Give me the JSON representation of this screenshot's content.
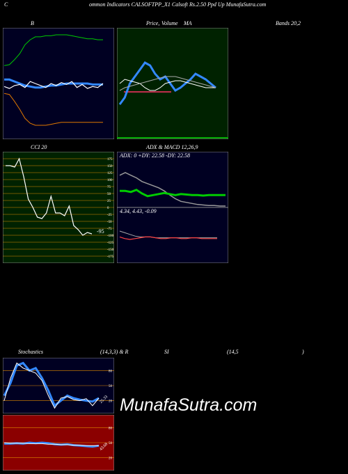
{
  "header": {
    "c": "C",
    "title": "ommon  Indicators CALSOFTPP_X1 Calsoft Rs.2.50  Ppd Up MunafaSutra.com"
  },
  "bollinger": {
    "label": "B",
    "label_right": "Bands 20,2"
  },
  "price": {
    "label": "Price,",
    "label2": "Volume",
    "label3": "MA"
  },
  "cci": {
    "label": "CCI 20",
    "last_value": "-95"
  },
  "adx": {
    "label": "ADX  & MACD 12,26,9",
    "readout": "ADX: 0  +DY: 22.58  -DY: 22.58"
  },
  "macd": {
    "readout": "4.34,  4.43,  -0.09"
  },
  "stoch": {
    "label": "Stochastics",
    "params": "(14,3,3) & R",
    "si": "SI",
    "rsi_params": "(14,5",
    "close_paren": ")",
    "last_value": "25.33"
  },
  "rsi": {
    "last_value": "43.68"
  },
  "watermark": "MunafaSutra.com",
  "colors": {
    "panel_bg": "#000022",
    "price_bg": "#002200",
    "cci_bg": "#002200",
    "rsi_bg": "#8b0000",
    "grid_orange": "#e08a00",
    "blue": "#3388ff",
    "green": "#00cc00",
    "orange": "#e07800"
  },
  "chart_data": [
    {
      "type": "line",
      "panel": "bollinger",
      "series": [
        {
          "values": [
            66,
            67,
            72,
            78,
            87,
            92,
            95,
            95,
            96,
            96,
            97,
            97,
            97,
            96,
            95,
            94,
            93,
            93,
            92,
            92
          ]
        },
        {
          "values": [
            52,
            52,
            50,
            48,
            46,
            45,
            44,
            44,
            45,
            46,
            46,
            47,
            48,
            48,
            48,
            48,
            48,
            47,
            47,
            47
          ]
        },
        {
          "values": [
            38,
            37,
            30,
            22,
            13,
            8,
            6,
            6,
            6,
            7,
            8,
            9,
            9,
            9,
            9,
            9,
            9,
            9,
            9,
            9
          ]
        },
        {
          "values": [
            45,
            43,
            46,
            47,
            44,
            50,
            48,
            46,
            44,
            48,
            46,
            49,
            47,
            50,
            44,
            47,
            43,
            45,
            44,
            48
          ]
        }
      ]
    },
    {
      "type": "line",
      "panel": "price",
      "series": [
        {
          "values": [
            40,
            45,
            55,
            60,
            65,
            70,
            68,
            62,
            58,
            60,
            55,
            50,
            52,
            55,
            58,
            62,
            60,
            58,
            55,
            52
          ]
        },
        {
          "values": [
            55,
            58,
            57,
            56,
            55,
            52,
            50,
            50,
            52,
            55,
            56,
            57,
            57,
            56,
            55,
            54,
            53,
            52,
            52,
            52
          ]
        },
        {
          "values": [
            50,
            52,
            53,
            54,
            55,
            56,
            57,
            58,
            59,
            60,
            60,
            60,
            59,
            58,
            57,
            56,
            55,
            54,
            53,
            52
          ]
        }
      ]
    },
    {
      "type": "line",
      "panel": "cci",
      "ylim": [
        -175,
        175
      ],
      "ticks": [
        175,
        150,
        125,
        100,
        75,
        50,
        25,
        0,
        -25,
        -50,
        -75,
        -100,
        -125,
        -150,
        -175
      ],
      "values": [
        150,
        150,
        145,
        175,
        110,
        30,
        0,
        -35,
        -40,
        -20,
        40,
        -20,
        -20,
        -30,
        5,
        -65,
        -80,
        -100,
        -90,
        -95
      ]
    },
    {
      "type": "line",
      "panel": "adx",
      "series": [
        {
          "values": [
            30,
            30,
            28,
            32,
            25,
            20,
            22,
            24,
            26,
            24,
            22,
            24,
            23,
            22,
            22,
            21,
            22,
            22,
            22,
            22
          ]
        },
        {
          "values": [
            60,
            65,
            60,
            55,
            48,
            44,
            40,
            36,
            30,
            22,
            15,
            10,
            8,
            6,
            4,
            3,
            2,
            2,
            1,
            1
          ]
        }
      ]
    },
    {
      "type": "line",
      "panel": "macd",
      "series": [
        {
          "values": [
            5.2,
            5.0,
            4.8,
            4.6,
            4.5,
            4.5,
            4.5,
            4.4,
            4.4,
            4.4,
            4.4,
            4.4,
            4.4,
            4.4,
            4.4,
            4.4,
            4.4,
            4.4,
            4.4,
            4.4
          ]
        },
        {
          "values": [
            4.5,
            4.3,
            4.2,
            4.3,
            4.4,
            4.5,
            4.5,
            4.4,
            4.3,
            4.3,
            4.4,
            4.4,
            4.3,
            4.3,
            4.4,
            4.4,
            4.3,
            4.3,
            4.3,
            4.3
          ]
        }
      ]
    },
    {
      "type": "line",
      "panel": "stochastics",
      "ylim": [
        0,
        100
      ],
      "ticks": [
        80,
        50,
        20
      ],
      "series": [
        {
          "values": [
            30,
            55,
            90,
            95,
            80,
            85,
            65,
            40,
            10,
            20,
            30,
            25,
            22,
            20,
            18,
            25
          ]
        },
        {
          "values": [
            20,
            65,
            95,
            85,
            80,
            75,
            60,
            30,
            5,
            25,
            28,
            22,
            20,
            24,
            10,
            25
          ]
        }
      ]
    },
    {
      "type": "line",
      "panel": "rsi",
      "ylim": [
        0,
        100
      ],
      "ticks": [
        80,
        50,
        20
      ],
      "series": [
        {
          "values": [
            48,
            48,
            49,
            48,
            50,
            49,
            50,
            49,
            47,
            46,
            47,
            45,
            44,
            43,
            42,
            44
          ]
        },
        {
          "values": [
            50,
            49,
            49,
            49,
            48,
            48,
            48,
            47,
            47,
            46,
            46,
            45,
            45,
            44,
            44,
            44
          ]
        }
      ]
    }
  ]
}
